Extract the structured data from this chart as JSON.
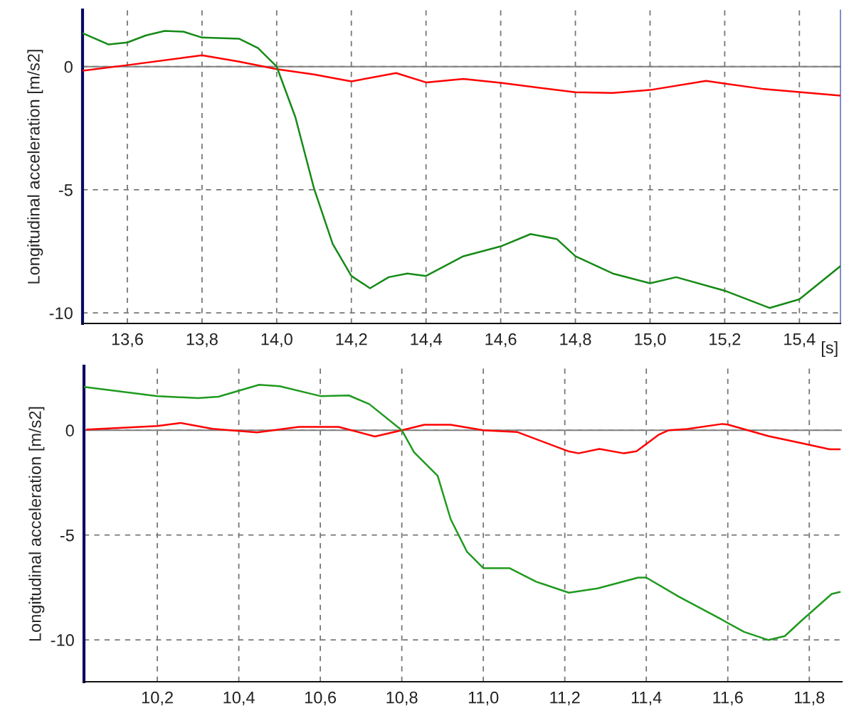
{
  "chart_data": [
    {
      "type": "line",
      "ylabel": "Longitudinal acceleration [m/s2]",
      "xlabel": "[s]",
      "grid": true,
      "xlim": [
        13.48,
        15.51
      ],
      "ylim": [
        -10.43,
        2.3
      ],
      "xticks": [
        {
          "value": 13.6,
          "label": "13,6"
        },
        {
          "value": 13.8,
          "label": "13,8"
        },
        {
          "value": 14.0,
          "label": "14,0"
        },
        {
          "value": 14.2,
          "label": "14,2"
        },
        {
          "value": 14.4,
          "label": "14,4"
        },
        {
          "value": 14.6,
          "label": "14,6"
        },
        {
          "value": 14.8,
          "label": "14,8"
        },
        {
          "value": 15.0,
          "label": "15,0"
        },
        {
          "value": 15.2,
          "label": "15,2"
        },
        {
          "value": 15.4,
          "label": "15,4"
        }
      ],
      "yticks": [
        0,
        -5,
        -10
      ],
      "ref_lines": [
        {
          "axis": "y",
          "value": 0,
          "color": "#808080"
        }
      ],
      "series": [
        {
          "color": "#ff0000",
          "x": [
            13.48,
            13.6,
            13.8,
            13.9,
            14.0,
            14.1,
            14.2,
            14.32,
            14.4,
            14.5,
            14.6,
            14.8,
            14.9,
            15.0,
            15.15,
            15.3,
            15.51
          ],
          "values": [
            -0.17,
            0.06,
            0.46,
            0.2,
            -0.1,
            -0.32,
            -0.6,
            -0.26,
            -0.64,
            -0.5,
            -0.66,
            -1.04,
            -1.07,
            -0.95,
            -0.58,
            -0.9,
            -1.18
          ]
        },
        {
          "color": "#168a16",
          "x": [
            13.48,
            13.55,
            13.6,
            13.65,
            13.7,
            13.75,
            13.8,
            13.9,
            13.95,
            14.0,
            14.05,
            14.1,
            14.15,
            14.2,
            14.25,
            14.3,
            14.35,
            14.4,
            14.5,
            14.6,
            14.68,
            14.75,
            14.8,
            14.9,
            15.0,
            15.07,
            15.2,
            15.32,
            15.4,
            15.51
          ],
          "values": [
            1.36,
            0.9,
            0.98,
            1.27,
            1.45,
            1.42,
            1.18,
            1.13,
            0.75,
            0,
            -2.05,
            -4.95,
            -7.2,
            -8.5,
            -9.0,
            -8.55,
            -8.4,
            -8.5,
            -7.7,
            -7.3,
            -6.8,
            -7.0,
            -7.7,
            -8.4,
            -8.8,
            -8.55,
            -9.1,
            -9.8,
            -9.45,
            -8.1
          ]
        }
      ]
    },
    {
      "type": "line",
      "ylabel": "Longitudinal acceleration [m/s2]",
      "grid": true,
      "xlim": [
        10.02,
        11.88
      ],
      "ylim": [
        -12.0,
        3.06
      ],
      "xticks": [
        {
          "value": 10.2,
          "label": "10,2"
        },
        {
          "value": 10.4,
          "label": "10,4"
        },
        {
          "value": 10.6,
          "label": "10,6"
        },
        {
          "value": 10.8,
          "label": "10,8"
        },
        {
          "value": 11.0,
          "label": "11,0"
        },
        {
          "value": 11.2,
          "label": "11,2"
        },
        {
          "value": 11.4,
          "label": "11,4"
        },
        {
          "value": 11.6,
          "label": "11,6"
        },
        {
          "value": 11.8,
          "label": "11,8"
        }
      ],
      "yticks": [
        0,
        -5,
        -10
      ],
      "ref_lines": [
        {
          "axis": "y",
          "value": 0,
          "color": "#808080"
        }
      ],
      "series": [
        {
          "color": "#ff0000",
          "x": [
            10.027,
            10.2,
            10.257,
            10.336,
            10.445,
            10.547,
            10.645,
            10.734,
            10.8,
            10.855,
            10.92,
            11.0,
            11.084,
            11.208,
            11.234,
            11.285,
            11.344,
            11.376,
            11.43,
            11.455,
            11.5,
            11.586,
            11.6,
            11.7,
            11.78,
            11.85,
            11.875
          ],
          "values": [
            0.03,
            0.2,
            0.35,
            0.07,
            -0.1,
            0.16,
            0.16,
            -0.3,
            0,
            0.26,
            0.26,
            0,
            -0.09,
            -1.0,
            -1.1,
            -0.89,
            -1.1,
            -1.0,
            -0.22,
            0,
            0.06,
            0.3,
            0.27,
            -0.28,
            -0.61,
            -0.91,
            -0.91
          ]
        },
        {
          "color": "#1f9a1f",
          "x": [
            10.02,
            10.2,
            10.3,
            10.35,
            10.45,
            10.5,
            10.6,
            10.67,
            10.72,
            10.8,
            10.83,
            10.888,
            10.92,
            10.96,
            11.0,
            11.064,
            11.13,
            11.21,
            11.28,
            11.38,
            11.4,
            11.48,
            11.58,
            11.64,
            11.7,
            11.74,
            11.78,
            11.855,
            11.875
          ],
          "values": [
            2.07,
            1.63,
            1.53,
            1.6,
            2.17,
            2.1,
            1.63,
            1.66,
            1.25,
            0,
            -1.05,
            -2.18,
            -4.25,
            -5.8,
            -6.58,
            -6.58,
            -7.23,
            -7.75,
            -7.55,
            -7.03,
            -7.03,
            -7.94,
            -8.98,
            -9.62,
            -10.01,
            -9.82,
            -9.1,
            -7.81,
            -7.72
          ]
        }
      ]
    }
  ]
}
